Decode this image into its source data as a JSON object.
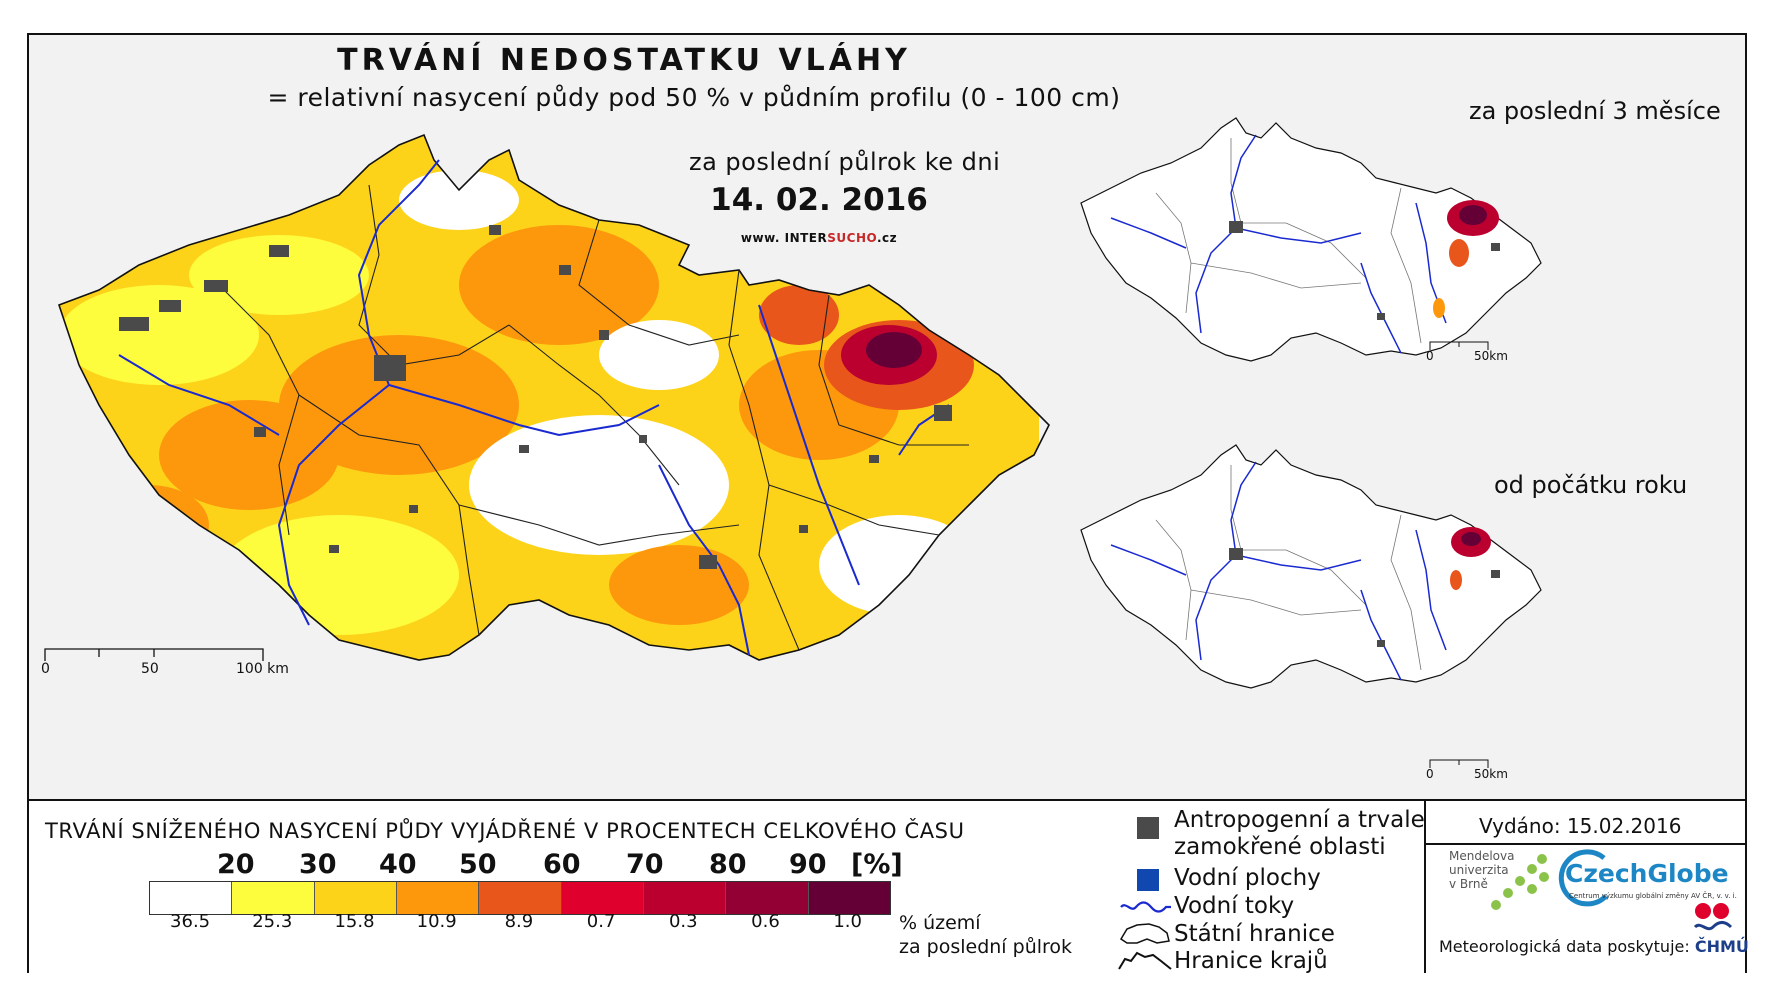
{
  "map": {
    "title": "TRVÁNÍ NEDOSTATKU VLÁHY",
    "subtitle": "= relativní nasycení půdy pod 50 % v půdním profilu (0 - 100 cm)",
    "period_label": "za poslední půlrok ke dni",
    "date": "14. 02. 2016",
    "website_prefix": "www. INTER",
    "website_highlight": "SUCHO",
    "website_suffix": ".cz",
    "main_scale": {
      "labels": [
        "0",
        "50",
        "100 km"
      ]
    },
    "inset_top": {
      "title": "za poslední 3 měsíce",
      "scale": [
        "0",
        "50km"
      ]
    },
    "inset_bottom": {
      "title": "od počátku roku",
      "scale": [
        "0",
        "50km"
      ]
    }
  },
  "legend": {
    "title": "TRVÁNÍ SNÍŽENÉHO NASYCENÍ PŮDY VYJÁDŘENÉ V PROCENTECH CELKOVÉHO ČASU",
    "thresholds": [
      "20",
      "30",
      "40",
      "50",
      "60",
      "70",
      "80",
      "90"
    ],
    "unit": "[%]",
    "classes": [
      {
        "color": "#ffffff",
        "pct": "36.5"
      },
      {
        "color": "#fdfd3e",
        "pct": "25.3"
      },
      {
        "color": "#fdd31a",
        "pct": "15.8"
      },
      {
        "color": "#fd980d",
        "pct": "10.9"
      },
      {
        "color": "#e9561b",
        "pct": "8.9"
      },
      {
        "color": "#e0002d",
        "pct": "0.7"
      },
      {
        "color": "#bb0030",
        "pct": "0.3"
      },
      {
        "color": "#930034",
        "pct": "0.6"
      },
      {
        "color": "#650037",
        "pct": "1.0"
      }
    ],
    "pct_unit_line1": "% území",
    "pct_unit_line2": "za poslední půlrok",
    "symbols": {
      "anthropogenic_line1": "Antropogenní a trvale",
      "anthropogenic_line2": "zamokřené oblasti",
      "water_bodies": "Vodní plochy",
      "rivers": "Vodní toky",
      "state_border": "Státní hranice",
      "regional_border": "Hranice krajů"
    },
    "symbol_colors": {
      "anthropogenic": "#4a4a4a",
      "water": "#1048b0",
      "river": "#1a2ad0"
    }
  },
  "credits": {
    "issued": "Vydáno: 15.02.2016",
    "mendel_line1": "Mendelova",
    "mendel_line2": "univerzita",
    "mendel_line3": "v Brně",
    "czechglobe": "CzechGlobe",
    "czechglobe_sub": "Centrum výzkumu globální změny AV ČR, v. v. i.",
    "meteo_label": "Meteorologická data poskytuje:",
    "chmu": "ČHMÚ"
  }
}
